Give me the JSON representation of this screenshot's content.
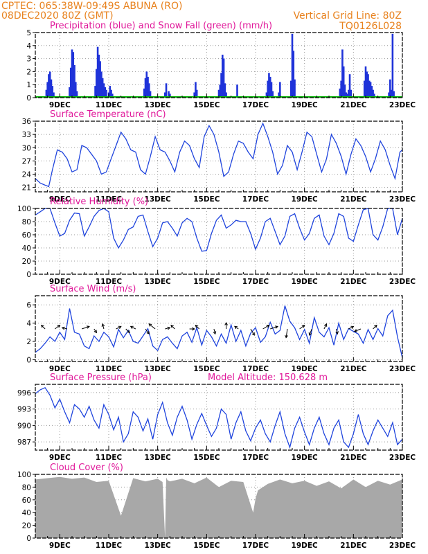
{
  "header": {
    "station": "CPTEC:  065:38W-09:49S  ABUNA (RO)",
    "run": "08DEC2020 80Z (GMT)",
    "grid_note": "Vertical Grid Line: 80Z",
    "code": "TQ0126L028"
  },
  "colors": {
    "header": "#e8821e",
    "title": "#e0189a",
    "precip": "#1f33d9",
    "snow": "#00b000",
    "line": "#1f44dd",
    "cloud": "#a8a8a8",
    "wind": "#000000"
  },
  "x_axis": {
    "start_day": 8.0,
    "end_day": 23.0,
    "tick_days": [
      9,
      11,
      13,
      15,
      17,
      19,
      21,
      23
    ],
    "tick_labels": [
      "9DEC",
      "11DEC",
      "13DEC",
      "15DEC",
      "17DEC",
      "19DEC",
      "21DEC",
      "23DEC"
    ],
    "minor_tick_days": [
      8.5,
      9.5,
      10,
      10.5,
      11.5,
      12,
      12.5,
      13.5,
      14,
      14.5,
      15.5,
      16,
      16.5,
      17.5,
      18,
      18.5,
      19.5,
      20,
      20.5,
      21.5,
      22,
      22.5
    ]
  },
  "chart_data": [
    {
      "type": "bar",
      "title": "Precipitation (blue) and Snow Fall (green) (mm/h)",
      "ylim": [
        0,
        5
      ],
      "yticks": [
        0,
        1,
        2,
        3,
        4,
        5
      ],
      "series": [
        {
          "name": "Precipitation",
          "x": [
            8.45,
            8.5,
            8.55,
            8.6,
            8.65,
            8.7,
            8.75,
            9.4,
            9.45,
            9.5,
            9.55,
            9.6,
            9.65,
            9.7,
            10.45,
            10.5,
            10.55,
            10.6,
            10.65,
            10.7,
            10.75,
            10.8,
            10.85,
            10.9,
            11.0,
            11.05,
            11.1,
            11.15,
            12.45,
            12.5,
            12.55,
            12.6,
            12.65,
            12.7,
            13.3,
            13.35,
            13.45,
            13.5,
            14.5,
            14.55,
            14.6,
            15.5,
            15.55,
            15.6,
            15.65,
            15.7,
            15.75,
            15.8,
            16.25,
            17.45,
            17.5,
            17.55,
            17.6,
            17.65,
            17.7,
            17.95,
            18.0,
            18.45,
            18.5,
            18.55,
            18.6,
            20.45,
            20.5,
            20.55,
            20.6,
            20.65,
            20.7,
            20.75,
            20.8,
            20.85,
            20.9,
            21.45,
            21.5,
            21.55,
            21.6,
            21.65,
            21.7,
            21.75,
            21.8,
            21.85,
            22.45,
            22.5,
            22.55,
            22.6,
            22.65
          ],
          "values": [
            0.6,
            1.2,
            1.8,
            2.0,
            1.4,
            0.9,
            0.4,
            0.8,
            2.3,
            3.7,
            3.5,
            2.5,
            1.2,
            0.5,
            0.9,
            2.2,
            3.9,
            3.3,
            2.8,
            2.0,
            1.5,
            1.1,
            0.8,
            0.6,
            0.4,
            0.9,
            0.6,
            0.3,
            0.7,
            1.5,
            2.0,
            1.6,
            1.1,
            0.5,
            0.4,
            1.1,
            0.5,
            0.3,
            0.4,
            1.2,
            0.6,
            0.6,
            1.0,
            1.9,
            3.3,
            3.0,
            1.1,
            0.4,
            1.0,
            0.4,
            1.3,
            1.9,
            1.6,
            1.2,
            0.5,
            0.4,
            1.2,
            1.3,
            4.9,
            3.6,
            1.4,
            0.7,
            1.3,
            3.7,
            2.4,
            1.0,
            0.4,
            0.3,
            0.6,
            1.8,
            0.6,
            1.3,
            2.4,
            2.0,
            1.8,
            1.3,
            1.2,
            0.9,
            0.6,
            0.3,
            0.4,
            1.4,
            0.6,
            4.9,
            0.5
          ]
        },
        {
          "name": "Snow Fall",
          "x": [
            8.0,
            23.0
          ],
          "values": [
            0,
            0
          ]
        }
      ]
    },
    {
      "type": "line",
      "title": "Surface Temperature (nC)",
      "ylim": [
        20,
        36
      ],
      "yticks": [
        21,
        24,
        27,
        30,
        33,
        36
      ],
      "x": [
        8.0,
        8.2,
        8.4,
        8.55,
        8.7,
        8.9,
        9.1,
        9.3,
        9.5,
        9.7,
        9.9,
        10.1,
        10.3,
        10.5,
        10.7,
        10.9,
        11.1,
        11.3,
        11.5,
        11.7,
        11.9,
        12.1,
        12.3,
        12.5,
        12.7,
        12.9,
        13.1,
        13.3,
        13.5,
        13.7,
        13.9,
        14.1,
        14.3,
        14.5,
        14.7,
        14.9,
        15.1,
        15.3,
        15.5,
        15.7,
        15.9,
        16.1,
        16.3,
        16.5,
        16.7,
        16.9,
        17.1,
        17.3,
        17.5,
        17.7,
        17.9,
        18.1,
        18.3,
        18.5,
        18.7,
        18.9,
        19.1,
        19.3,
        19.5,
        19.7,
        19.9,
        20.1,
        20.3,
        20.5,
        20.7,
        20.9,
        21.1,
        21.3,
        21.5,
        21.7,
        21.9,
        22.1,
        22.3,
        22.5,
        22.7,
        22.9,
        23.0
      ],
      "values": [
        23.0,
        22.0,
        21.5,
        21.2,
        25.0,
        29.5,
        29.0,
        27.5,
        24.5,
        25.0,
        30.5,
        30.0,
        28.5,
        27.0,
        24.0,
        24.5,
        27.5,
        30.5,
        33.5,
        32.0,
        29.5,
        29.0,
        25.0,
        24.0,
        28.0,
        32.5,
        29.5,
        29.0,
        27.0,
        24.5,
        29.0,
        31.5,
        30.5,
        27.5,
        25.5,
        32.5,
        35.0,
        33.0,
        29.0,
        23.5,
        24.5,
        28.5,
        31.5,
        31.0,
        29.0,
        27.5,
        33.0,
        35.5,
        32.5,
        29.0,
        24.0,
        26.0,
        30.5,
        29.0,
        25.0,
        29.0,
        33.5,
        32.5,
        28.5,
        24.5,
        27.5,
        33.0,
        31.0,
        28.0,
        24.0,
        28.5,
        32.0,
        30.5,
        28.0,
        24.5,
        27.5,
        31.5,
        29.5,
        26.0,
        23.0,
        29.0,
        29.5
      ]
    },
    {
      "type": "line",
      "title": "Relative Humidity (%)",
      "ylim": [
        0,
        100
      ],
      "yticks": [
        0,
        20,
        40,
        60,
        80,
        100
      ],
      "x": [
        8.0,
        8.2,
        8.4,
        8.6,
        8.8,
        9.0,
        9.2,
        9.4,
        9.6,
        9.8,
        10.0,
        10.2,
        10.4,
        10.6,
        10.8,
        11.0,
        11.2,
        11.4,
        11.6,
        11.8,
        12.0,
        12.2,
        12.4,
        12.6,
        12.8,
        13.0,
        13.2,
        13.4,
        13.6,
        13.8,
        14.0,
        14.2,
        14.4,
        14.6,
        14.8,
        15.0,
        15.2,
        15.4,
        15.6,
        15.8,
        16.0,
        16.2,
        16.4,
        16.6,
        16.8,
        17.0,
        17.2,
        17.4,
        17.6,
        17.8,
        18.0,
        18.2,
        18.4,
        18.6,
        18.8,
        19.0,
        19.2,
        19.4,
        19.6,
        19.8,
        20.0,
        20.2,
        20.4,
        20.6,
        20.8,
        21.0,
        21.2,
        21.4,
        21.6,
        21.8,
        22.0,
        22.2,
        22.4,
        22.6,
        22.8,
        23.0
      ],
      "values": [
        90,
        95,
        100,
        100,
        78,
        58,
        62,
        82,
        93,
        92,
        58,
        72,
        88,
        97,
        100,
        95,
        55,
        40,
        52,
        68,
        72,
        88,
        90,
        65,
        42,
        55,
        78,
        80,
        70,
        58,
        78,
        85,
        80,
        55,
        35,
        36,
        62,
        82,
        90,
        70,
        75,
        82,
        80,
        80,
        62,
        38,
        55,
        80,
        85,
        65,
        45,
        58,
        88,
        92,
        70,
        52,
        62,
        85,
        90,
        58,
        45,
        62,
        92,
        88,
        55,
        50,
        75,
        98,
        100,
        60,
        52,
        72,
        100,
        100,
        60,
        85
      ]
    },
    {
      "type": "line",
      "title": "Surface Wind (m/s)",
      "ylim": [
        -0.2,
        7
      ],
      "yticks": [
        0,
        2,
        4,
        6
      ],
      "x": [
        8.0,
        8.2,
        8.4,
        8.6,
        8.8,
        9.0,
        9.2,
        9.4,
        9.6,
        9.8,
        10.0,
        10.2,
        10.4,
        10.6,
        10.8,
        11.0,
        11.2,
        11.4,
        11.6,
        11.8,
        12.0,
        12.2,
        12.4,
        12.6,
        12.8,
        13.0,
        13.2,
        13.4,
        13.6,
        13.8,
        14.0,
        14.2,
        14.4,
        14.6,
        14.8,
        15.0,
        15.2,
        15.4,
        15.6,
        15.8,
        16.0,
        16.2,
        16.4,
        16.6,
        16.8,
        17.0,
        17.2,
        17.4,
        17.6,
        17.8,
        18.0,
        18.2,
        18.4,
        18.6,
        18.8,
        19.0,
        19.2,
        19.4,
        19.6,
        19.8,
        20.0,
        20.2,
        20.4,
        20.6,
        20.8,
        21.0,
        21.2,
        21.4,
        21.6,
        21.8,
        22.0,
        22.2,
        22.4,
        22.6,
        22.8,
        23.0
      ],
      "values": [
        0.8,
        1.2,
        1.8,
        2.5,
        2.0,
        3.0,
        2.2,
        5.6,
        3.0,
        2.8,
        1.5,
        1.2,
        2.6,
        2.0,
        3.0,
        2.5,
        1.4,
        3.3,
        2.4,
        3.2,
        2.0,
        1.8,
        2.6,
        3.4,
        1.5,
        1.0,
        2.2,
        2.5,
        1.8,
        1.2,
        2.6,
        3.0,
        1.9,
        3.5,
        1.6,
        3.2,
        2.5,
        1.5,
        2.8,
        1.8,
        3.8,
        2.0,
        3.2,
        1.5,
        2.9,
        3.5,
        1.9,
        2.5,
        4.1,
        2.8,
        3.2,
        5.9,
        4.2,
        3.5,
        2.2,
        3.3,
        1.8,
        4.6,
        3.0,
        2.5,
        3.5,
        1.6,
        4.0,
        2.2,
        3.4,
        3.1,
        2.8,
        1.8,
        3.3,
        2.2,
        3.4,
        2.6,
        4.8,
        5.4,
        2.5,
        0.2
      ],
      "arrows": {
        "x": [
          8.4,
          8.8,
          9.3,
          9.9,
          10.4,
          10.8,
          11.3,
          11.7,
          12.1,
          12.5,
          12.9,
          13.3,
          13.7,
          14.3,
          14.7,
          15.3,
          15.8,
          16.3,
          16.8,
          17.3,
          17.6,
          18.3,
          18.8,
          19.3,
          19.8,
          20.3,
          20.8,
          21.3,
          21.8
        ],
        "u": [
          -0.3,
          0.4,
          -0.4,
          0.6,
          0.2,
          -0.1,
          0.4,
          0.3,
          -0.4,
          0.3,
          -0.5,
          0.4,
          -0.3,
          0.4,
          -0.3,
          0.1,
          0.0,
          -0.3,
          0.3,
          0.5,
          0.6,
          -0.1,
          0.4,
          -0.2,
          0.2,
          0.1,
          0.4,
          -0.5,
          0.3
        ],
        "v": [
          0.3,
          0.3,
          0.1,
          0.2,
          -0.3,
          0.4,
          0.2,
          -0.3,
          0.2,
          -0.4,
          0.4,
          0.1,
          0.3,
          0.0,
          0.3,
          -0.4,
          0.5,
          0.2,
          -0.5,
          0.3,
          0.2,
          -0.7,
          0.3,
          -0.5,
          0.4,
          -0.4,
          0.2,
          -0.2,
          0.3
        ]
      }
    },
    {
      "type": "line",
      "title": "Surface Pressure (hPa)",
      "subtitle": "Model Altitude: 150.628 m",
      "ylim": [
        985.5,
        997.5
      ],
      "yticks": [
        987,
        990,
        993,
        996
      ],
      "x": [
        8.0,
        8.2,
        8.4,
        8.6,
        8.8,
        9.0,
        9.2,
        9.4,
        9.6,
        9.8,
        10.0,
        10.2,
        10.4,
        10.6,
        10.8,
        11.0,
        11.2,
        11.4,
        11.6,
        11.8,
        12.0,
        12.2,
        12.4,
        12.6,
        12.8,
        13.0,
        13.2,
        13.4,
        13.6,
        13.8,
        14.0,
        14.2,
        14.4,
        14.6,
        14.8,
        15.0,
        15.2,
        15.4,
        15.6,
        15.8,
        16.0,
        16.2,
        16.4,
        16.6,
        16.8,
        17.0,
        17.2,
        17.4,
        17.6,
        17.8,
        18.0,
        18.2,
        18.4,
        18.6,
        18.8,
        19.0,
        19.2,
        19.4,
        19.6,
        19.8,
        20.0,
        20.2,
        20.4,
        20.6,
        20.8,
        21.0,
        21.2,
        21.4,
        21.6,
        21.8,
        22.0,
        22.2,
        22.4,
        22.6,
        22.8,
        23.0
      ],
      "values": [
        995.8,
        996.5,
        996.9,
        995.5,
        993.2,
        994.8,
        992.5,
        990.5,
        993.8,
        993.0,
        991.5,
        993.5,
        991.0,
        989.5,
        993.8,
        992.0,
        989.2,
        991.5,
        987.0,
        988.5,
        992.5,
        991.5,
        989.0,
        991.2,
        987.5,
        992.0,
        994.2,
        990.5,
        988.2,
        991.5,
        993.5,
        991.0,
        987.5,
        990.2,
        992.2,
        990.0,
        988.0,
        989.5,
        993.0,
        992.0,
        987.5,
        990.5,
        992.5,
        989.0,
        987.2,
        989.5,
        991.0,
        988.5,
        987.0,
        990.0,
        992.5,
        988.5,
        986.0,
        989.5,
        991.5,
        988.8,
        986.5,
        989.5,
        991.5,
        988.5,
        986.5,
        989.5,
        991.0,
        987.0,
        986.0,
        988.5,
        992.0,
        988.5,
        986.5,
        989.0,
        991.0,
        989.5,
        988.0,
        990.5,
        986.5,
        987.5
      ]
    },
    {
      "type": "area",
      "title": "Cloud Cover (%)",
      "ylim": [
        0,
        100
      ],
      "yticks": [
        0,
        20,
        40,
        60,
        80,
        100
      ],
      "x": [
        8.0,
        8.5,
        9.0,
        9.5,
        10.0,
        10.5,
        11.0,
        11.5,
        12.0,
        12.5,
        13.0,
        13.2,
        13.3,
        13.35,
        13.4,
        13.5,
        14.0,
        14.5,
        15.0,
        15.5,
        16.0,
        16.5,
        16.9,
        17.0,
        17.1,
        17.5,
        18.0,
        18.5,
        19.0,
        19.5,
        20.0,
        20.5,
        21.0,
        21.5,
        22.0,
        22.5,
        23.0
      ],
      "values": [
        92,
        94,
        96,
        93,
        95,
        88,
        90,
        35,
        94,
        89,
        93,
        88,
        0,
        95,
        91,
        89,
        93,
        86,
        95,
        80,
        90,
        88,
        40,
        62,
        75,
        85,
        92,
        86,
        90,
        82,
        89,
        78,
        92,
        80,
        90,
        84,
        92
      ]
    }
  ]
}
